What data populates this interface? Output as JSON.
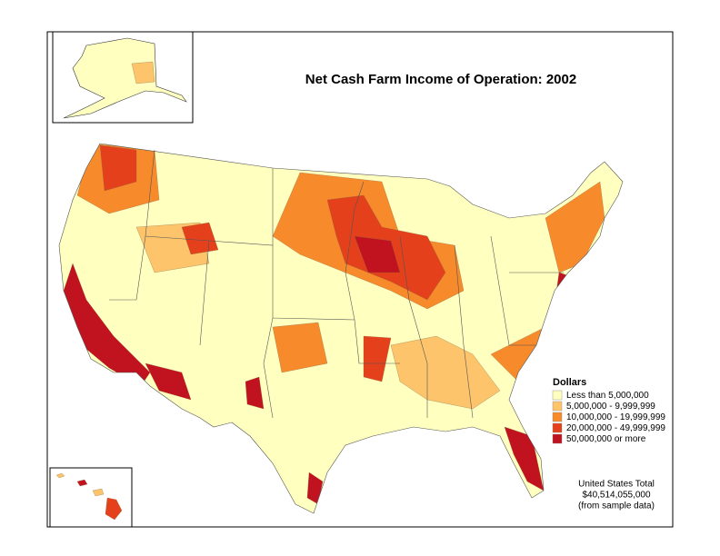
{
  "title": "Net Cash Farm Income of Operation:  2002",
  "legend": {
    "title": "Dollars",
    "items": [
      {
        "label": "Less than 5,000,000",
        "color": "#ffffbf"
      },
      {
        "label": "5,000,000 - 9,999,999",
        "color": "#fdc46c"
      },
      {
        "label": "10,000,000 - 19,999,999",
        "color": "#f78a2b"
      },
      {
        "label": "20,000,000 - 49,999,999",
        "color": "#e5401c"
      },
      {
        "label": "50,000,000 or more",
        "color": "#c1121f"
      }
    ]
  },
  "note": [
    "United States Total",
    "$40,514,055,000",
    "(from sample data)"
  ]
}
